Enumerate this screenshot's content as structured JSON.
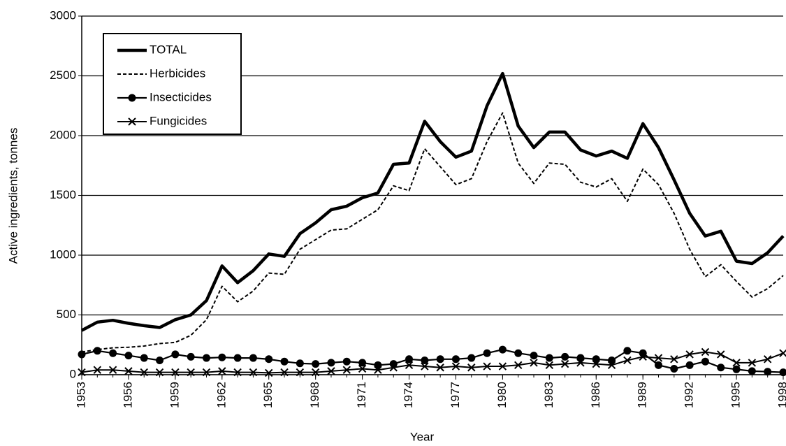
{
  "chart_data": {
    "type": "line",
    "xlabel": "Year",
    "ylabel": "Active ingredients, tonnes",
    "x": [
      1953,
      1954,
      1955,
      1956,
      1957,
      1958,
      1959,
      1960,
      1961,
      1962,
      1963,
      1964,
      1965,
      1966,
      1967,
      1968,
      1969,
      1970,
      1971,
      1972,
      1973,
      1974,
      1975,
      1976,
      1977,
      1978,
      1979,
      1980,
      1981,
      1982,
      1983,
      1984,
      1985,
      1986,
      1987,
      1988,
      1989,
      1990,
      1991,
      1992,
      1993,
      1994,
      1995,
      1996,
      1997,
      1998
    ],
    "xlim": [
      1953,
      1998
    ],
    "xticks": [
      1953,
      1956,
      1959,
      1962,
      1965,
      1968,
      1971,
      1974,
      1977,
      1980,
      1983,
      1986,
      1989,
      1992,
      1995,
      1998
    ],
    "ylim": [
      0,
      3000
    ],
    "yticks": [
      0,
      500,
      1000,
      1500,
      2000,
      2500,
      3000
    ],
    "grid": true,
    "legend": "upper left",
    "series": [
      {
        "name": "TOTAL",
        "color": "#000000",
        "style": "bold",
        "values": [
          370,
          440,
          455,
          430,
          410,
          395,
          460,
          500,
          620,
          910,
          770,
          870,
          1010,
          990,
          1180,
          1270,
          1380,
          1410,
          1480,
          1520,
          1760,
          1770,
          2120,
          1950,
          1820,
          1870,
          2250,
          2520,
          2080,
          1900,
          2030,
          2030,
          1880,
          1830,
          1870,
          1810,
          2100,
          1900,
          1630,
          1350,
          1160,
          1200,
          950,
          930,
          1020,
          1160
        ]
      },
      {
        "name": "Herbicides",
        "color": "#000000",
        "style": "dashed",
        "values": [
          190,
          210,
          225,
          230,
          240,
          260,
          270,
          330,
          460,
          740,
          610,
          700,
          850,
          840,
          1050,
          1130,
          1210,
          1220,
          1300,
          1380,
          1580,
          1540,
          1890,
          1740,
          1590,
          1640,
          1950,
          2190,
          1770,
          1600,
          1770,
          1760,
          1610,
          1570,
          1640,
          1450,
          1720,
          1590,
          1350,
          1050,
          820,
          920,
          780,
          650,
          720,
          830
        ]
      },
      {
        "name": "Insecticides",
        "color": "#000000",
        "style": "circle",
        "values": [
          170,
          200,
          180,
          160,
          140,
          120,
          170,
          150,
          140,
          145,
          140,
          140,
          130,
          110,
          95,
          90,
          100,
          110,
          100,
          80,
          90,
          130,
          120,
          130,
          130,
          140,
          180,
          210,
          180,
          160,
          140,
          150,
          140,
          130,
          120,
          200,
          180,
          80,
          50,
          80,
          110,
          60,
          45,
          30,
          25,
          20
        ]
      },
      {
        "name": "Fungicides",
        "color": "#000000",
        "style": "cross",
        "values": [
          20,
          40,
          40,
          30,
          20,
          20,
          20,
          20,
          20,
          30,
          20,
          20,
          15,
          20,
          20,
          20,
          30,
          40,
          50,
          40,
          60,
          80,
          70,
          60,
          70,
          60,
          70,
          70,
          80,
          100,
          80,
          90,
          100,
          90,
          80,
          120,
          150,
          140,
          130,
          170,
          190,
          170,
          100,
          100,
          130,
          180
        ]
      }
    ]
  }
}
